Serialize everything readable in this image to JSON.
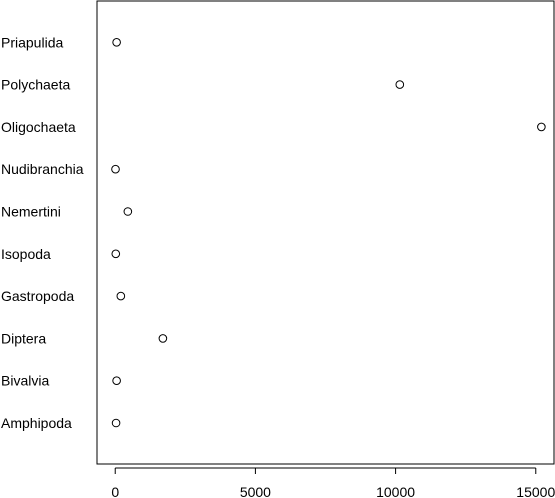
{
  "chart_data": {
    "type": "scatter",
    "title": "",
    "xlabel": "",
    "ylabel": "",
    "categories": [
      "Amphipoda",
      "Bivalvia",
      "Diptera",
      "Gastropoda",
      "Isopoda",
      "Nemertini",
      "Nudibranchia",
      "Oligochaeta",
      "Polychaeta",
      "Priapulida"
    ],
    "values": [
      30,
      50,
      1700,
      200,
      20,
      450,
      10,
      15200,
      10150,
      50
    ],
    "xlim": [
      -650,
      15650
    ],
    "xticks": [
      0,
      5000,
      10000,
      15000
    ],
    "xtick_labels": [
      "0",
      "5000",
      "10000",
      "15000"
    ],
    "grid": false,
    "legend": "none",
    "marker": "open-circle"
  }
}
